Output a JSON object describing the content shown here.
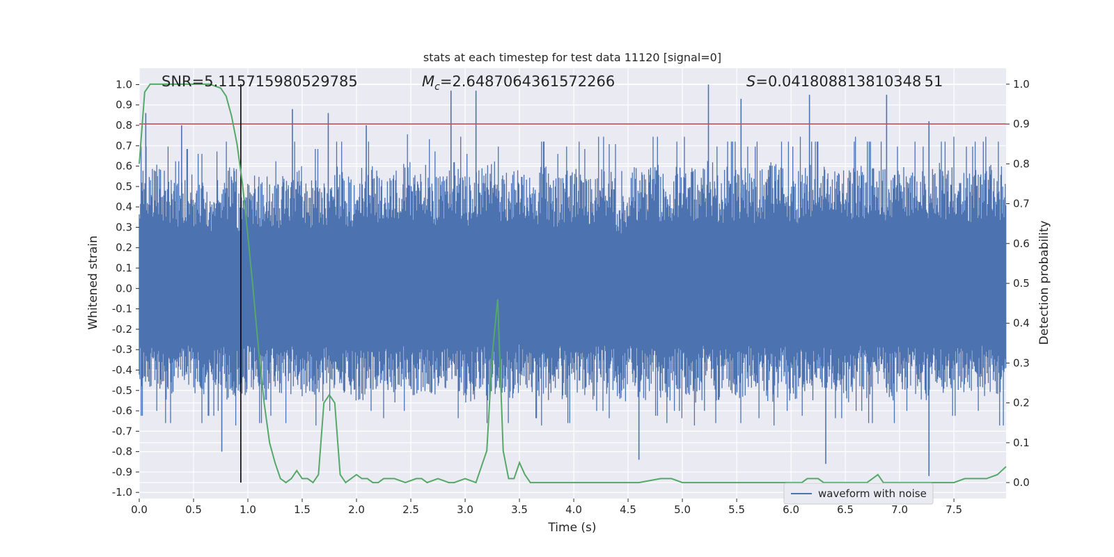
{
  "chart_data": {
    "type": "line",
    "title": "stats at each timestep for test data 11120 [signal=0]",
    "xlabel": "Time (s)",
    "ylabel": "Whitened strain",
    "ylabel_right": "Detection probability",
    "xlim": [
      0.0,
      7.98
    ],
    "ylim": [
      -1.03,
      1.08
    ],
    "ylim_right": [
      -0.04,
      1.04
    ],
    "xticks": [
      "0.0",
      "0.5",
      "1.0",
      "1.5",
      "2.0",
      "2.5",
      "3.0",
      "3.5",
      "4.0",
      "4.5",
      "5.0",
      "5.5",
      "6.0",
      "6.5",
      "7.0",
      "7.5"
    ],
    "yticks": [
      "-1.0",
      "-0.9",
      "-0.8",
      "-0.7",
      "-0.6",
      "-0.5",
      "-0.4",
      "-0.3",
      "-0.2",
      "-0.1",
      "0.0",
      "0.1",
      "0.2",
      "0.3",
      "0.4",
      "0.5",
      "0.6",
      "0.7",
      "0.8",
      "0.9",
      "1.0"
    ],
    "yticks_right": [
      "0.0",
      "0.1",
      "0.2",
      "0.3",
      "0.4",
      "0.5",
      "0.6",
      "0.7",
      "0.8",
      "0.9",
      "1.0"
    ],
    "annotations": {
      "snr": "SNR=5.115715980529785",
      "mc_symbol": "M",
      "mc_sub": "c",
      "mc_value": "=2.6487064361572266",
      "s_symbol": "S",
      "s_value": "=0.041808813810348 51"
    },
    "threshold_right": 0.9,
    "vertical_marker_x": 0.935,
    "grid": true,
    "legend": {
      "position": "lower-right",
      "entries": [
        "waveform with noise"
      ]
    },
    "series": [
      {
        "name": "waveform with noise",
        "axis": "left",
        "color": "#4c72b0",
        "envelope_top": [
          0.58,
          0.62,
          0.58,
          0.52,
          0.57,
          0.55,
          0.5,
          0.56,
          0.6,
          0.51,
          0.57,
          0.55,
          0.52,
          0.56,
          0.6,
          0.53,
          0.57,
          0.54,
          0.6,
          0.55,
          0.62,
          0.6,
          0.58,
          0.6,
          0.63,
          0.58,
          0.61,
          0.56,
          0.59,
          0.62,
          0.55,
          0.6,
          0.63,
          0.58,
          0.6,
          0.62,
          0.57,
          0.6,
          0.55,
          0.58,
          0.6,
          0.57,
          0.62,
          0.59,
          0.48,
          0.6,
          0.57,
          0.62,
          0.58,
          0.6,
          0.62,
          0.6,
          0.63,
          0.58,
          0.6,
          0.62,
          0.58,
          0.6,
          0.62,
          0.6,
          0.58,
          0.62,
          0.6,
          0.62,
          0.58,
          0.6,
          0.62,
          0.6,
          0.6,
          0.58,
          0.62,
          0.6,
          0.58,
          0.62,
          0.6,
          0.62,
          0.58,
          0.6,
          0.62,
          0.6
        ],
        "envelope_bottom": [
          -0.52,
          -0.5,
          -0.55,
          -0.53,
          -0.5,
          -0.55,
          -0.52,
          -0.5,
          -0.56,
          -0.53,
          -0.5,
          -0.55,
          -0.52,
          -0.55,
          -0.5,
          -0.53,
          -0.56,
          -0.5,
          -0.55,
          -0.52,
          -0.55,
          -0.5,
          -0.53,
          -0.56,
          -0.5,
          -0.55,
          -0.52,
          -0.55,
          -0.5,
          -0.53,
          -0.56,
          -0.5,
          -0.55,
          -0.52,
          -0.55,
          -0.5,
          -0.53,
          -0.56,
          -0.5,
          -0.55,
          -0.52,
          -0.55,
          -0.5,
          -0.53,
          -0.56,
          -0.5,
          -0.55,
          -0.52,
          -0.55,
          -0.5,
          -0.53,
          -0.56,
          -0.5,
          -0.55,
          -0.52,
          -0.55,
          -0.5,
          -0.53,
          -0.56,
          -0.5,
          -0.55,
          -0.52,
          -0.55,
          -0.5,
          -0.53,
          -0.56,
          -0.5,
          -0.55,
          -0.52,
          -0.55,
          -0.5,
          -0.53,
          -0.56,
          -0.5,
          -0.55,
          -0.52,
          -0.55,
          -0.5,
          -0.53,
          -0.56
        ],
        "spikes": [
          {
            "x": 0.06,
            "y": 0.86
          },
          {
            "x": 0.39,
            "y": 0.8
          },
          {
            "x": 0.76,
            "y": -0.8
          },
          {
            "x": 1.41,
            "y": 0.88
          },
          {
            "x": 1.74,
            "y": 0.86
          },
          {
            "x": 2.09,
            "y": 0.8
          },
          {
            "x": 2.87,
            "y": 0.97
          },
          {
            "x": 3.1,
            "y": 0.97
          },
          {
            "x": 4.6,
            "y": -0.84
          },
          {
            "x": 5.24,
            "y": 1.0
          },
          {
            "x": 5.54,
            "y": 0.93
          },
          {
            "x": 6.17,
            "y": 0.95
          },
          {
            "x": 6.32,
            "y": -0.86
          },
          {
            "x": 6.88,
            "y": 0.95
          },
          {
            "x": 7.27,
            "y": 0.82
          },
          {
            "x": 7.27,
            "y": -0.92
          }
        ]
      },
      {
        "name": "",
        "axis": "right",
        "color": "#55a868",
        "x": [
          0.0,
          0.05,
          0.1,
          0.25,
          0.5,
          0.65,
          0.75,
          0.8,
          0.85,
          0.9,
          0.95,
          1.0,
          1.05,
          1.1,
          1.15,
          1.2,
          1.25,
          1.3,
          1.35,
          1.4,
          1.45,
          1.5,
          1.55,
          1.6,
          1.65,
          1.7,
          1.75,
          1.8,
          1.85,
          1.9,
          1.95,
          2.0,
          2.05,
          2.1,
          2.15,
          2.2,
          2.25,
          2.35,
          2.45,
          2.55,
          2.6,
          2.65,
          2.75,
          2.85,
          2.9,
          3.0,
          3.1,
          3.2,
          3.25,
          3.3,
          3.35,
          3.4,
          3.45,
          3.5,
          3.55,
          3.6,
          3.65,
          3.7,
          3.8,
          3.9,
          4.0,
          4.2,
          4.4,
          4.6,
          4.8,
          4.9,
          5.0,
          5.1,
          5.3,
          5.5,
          5.7,
          5.9,
          6.1,
          6.15,
          6.2,
          6.25,
          6.3,
          6.4,
          6.5,
          6.6,
          6.7,
          6.75,
          6.8,
          6.85,
          6.9,
          7.0,
          7.2,
          7.5,
          7.6,
          7.7,
          7.8,
          7.9,
          7.98
        ],
        "y": [
          0.8,
          0.98,
          1.0,
          1.0,
          1.0,
          1.0,
          0.99,
          0.97,
          0.92,
          0.85,
          0.75,
          0.62,
          0.48,
          0.33,
          0.2,
          0.1,
          0.05,
          0.01,
          0.0,
          0.01,
          0.03,
          0.01,
          0.01,
          0.0,
          0.02,
          0.2,
          0.22,
          0.2,
          0.02,
          0.0,
          0.01,
          0.02,
          0.01,
          0.01,
          0.0,
          0.0,
          0.01,
          0.01,
          0.0,
          0.01,
          0.01,
          0.0,
          0.01,
          0.0,
          0.0,
          0.01,
          0.0,
          0.08,
          0.32,
          0.46,
          0.08,
          0.01,
          0.01,
          0.05,
          0.02,
          0.0,
          0.0,
          0.0,
          0.0,
          0.0,
          0.0,
          0.0,
          0.0,
          0.0,
          0.01,
          0.01,
          0.0,
          0.0,
          0.0,
          0.0,
          0.0,
          0.0,
          0.0,
          0.01,
          0.01,
          0.01,
          0.0,
          0.0,
          0.0,
          0.0,
          0.0,
          0.01,
          0.02,
          0.0,
          0.0,
          0.0,
          0.0,
          0.0,
          0.01,
          0.01,
          0.01,
          0.02,
          0.04
        ]
      }
    ]
  }
}
